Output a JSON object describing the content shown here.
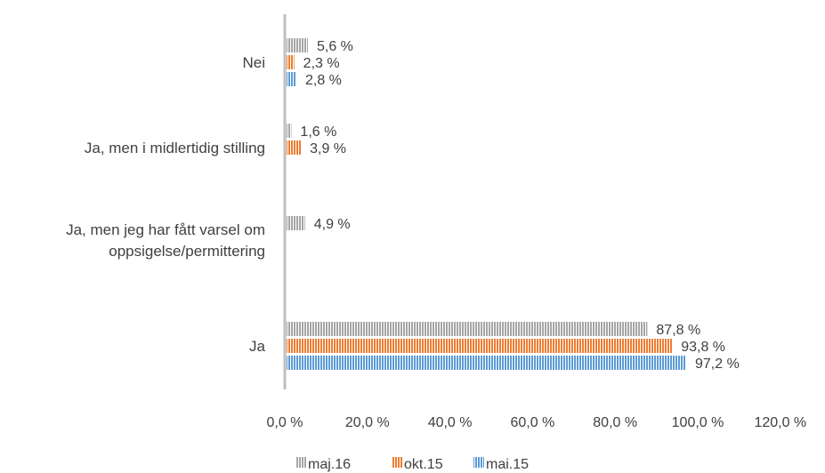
{
  "chart_data": {
    "type": "bar",
    "orientation": "horizontal",
    "categories": [
      "Ja",
      "Ja, men jeg har fått varsel om oppsigelse/permittering",
      "Ja, men i midlertidig stilling",
      "Nei"
    ],
    "category_lines": [
      [
        "Ja"
      ],
      [
        "Ja, men jeg har fått varsel om",
        "oppsigelse/permittering"
      ],
      [
        "Ja, men i midlertidig stilling"
      ],
      [
        "Nei"
      ]
    ],
    "series": [
      {
        "name": "maj.16",
        "color": "#A5A5A5",
        "values": [
          87.8,
          4.9,
          1.6,
          5.6
        ],
        "labels": [
          "87,8 %",
          "4,9 %",
          "1,6 %",
          "5,6 %"
        ]
      },
      {
        "name": "okt.15",
        "color": "#ED7D31",
        "values": [
          93.8,
          null,
          3.9,
          2.3
        ],
        "labels": [
          "93,8 %",
          "",
          "3,9 %",
          "2,3 %"
        ]
      },
      {
        "name": "mai.15",
        "color": "#5B9BD5",
        "values": [
          97.2,
          null,
          null,
          2.8
        ],
        "labels": [
          "97,2 %",
          "",
          "",
          "2,8 %"
        ]
      }
    ],
    "xlim": [
      0,
      120
    ],
    "xticks": [
      0,
      20,
      40,
      60,
      80,
      100,
      120
    ],
    "xtick_labels": [
      "0,0 %",
      "20,0 %",
      "40,0 %",
      "60,0 %",
      "80,0 %",
      "100,0 %",
      "120,0 %"
    ],
    "legend": {
      "position": "bottom",
      "order": [
        "maj.16",
        "okt.15",
        "mai.15"
      ]
    },
    "grid": false,
    "bar_pattern": "vertical-stripes"
  }
}
